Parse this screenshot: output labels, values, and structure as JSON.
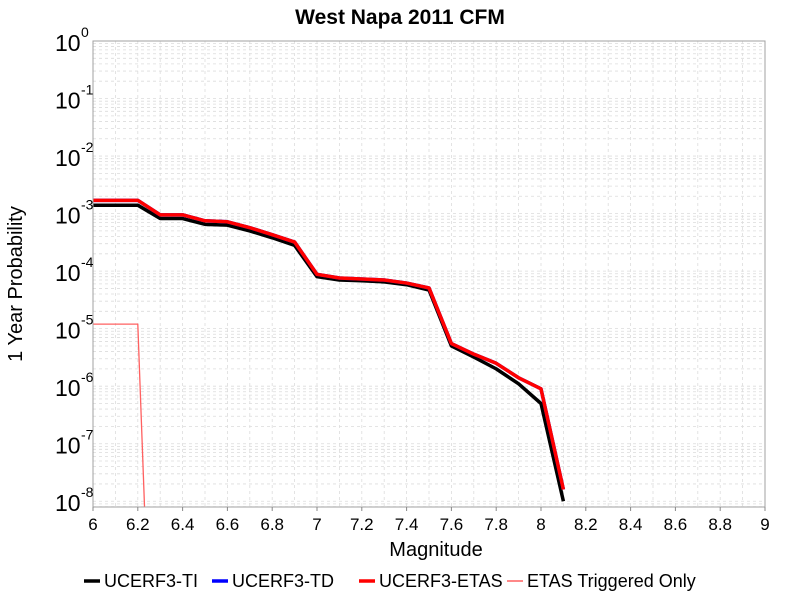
{
  "chart_data": {
    "type": "line",
    "title": "West Napa 2011 CFM",
    "xlabel": "Magnitude",
    "ylabel": "1 Year Probability",
    "xlim": [
      6,
      9
    ],
    "ylim_log10": [
      -8.1,
      0
    ],
    "y_scale": "log",
    "grid": true,
    "legend_position": "bottom",
    "x_ticks": [
      "6",
      "6.2",
      "6.4",
      "6.6",
      "6.8",
      "7",
      "7.2",
      "7.4",
      "7.6",
      "7.8",
      "8",
      "8.2",
      "8.4",
      "8.6",
      "8.8",
      "9"
    ],
    "y_ticks": [
      {
        "base": "10",
        "exp": "0",
        "value": 1
      },
      {
        "base": "10",
        "exp": "-1",
        "value": 0.1
      },
      {
        "base": "10",
        "exp": "-2",
        "value": 0.01
      },
      {
        "base": "10",
        "exp": "-3",
        "value": 0.001
      },
      {
        "base": "10",
        "exp": "-4",
        "value": 0.0001
      },
      {
        "base": "10",
        "exp": "-5",
        "value": 1e-05
      },
      {
        "base": "10",
        "exp": "-6",
        "value": 1e-06
      },
      {
        "base": "10",
        "exp": "-7",
        "value": 1e-07
      },
      {
        "base": "10",
        "exp": "-8",
        "value": 1e-08
      }
    ],
    "series": [
      {
        "name": "UCERF3-TI",
        "color": "#000000",
        "x": [
          6.0,
          6.2,
          6.3,
          6.4,
          6.5,
          6.6,
          6.7,
          6.8,
          6.9,
          7.0,
          7.1,
          7.2,
          7.3,
          7.4,
          7.5,
          7.6,
          7.7,
          7.8,
          7.9,
          8.0,
          8.1
        ],
        "y": [
          0.0014,
          0.0014,
          0.00082,
          0.00082,
          0.00065,
          0.00063,
          0.0005,
          0.00038,
          0.00028,
          8e-05,
          7e-05,
          6.8e-05,
          6.5e-05,
          5.8e-05,
          4.7e-05,
          5e-06,
          3.2e-06,
          2e-06,
          1.1e-06,
          5e-07,
          1e-08
        ]
      },
      {
        "name": "UCERF3-TD",
        "color": "#0000ff",
        "x": [
          6.0,
          6.2,
          6.3,
          6.4,
          6.5,
          6.6,
          6.7,
          6.8,
          6.9,
          7.0,
          7.1,
          7.2,
          7.3,
          7.4,
          7.5,
          7.6,
          7.7,
          7.8,
          7.9,
          8.0,
          8.1
        ],
        "y": [
          0.0017,
          0.0017,
          0.00095,
          0.00095,
          0.00075,
          0.00072,
          0.00057,
          0.00043,
          0.00032,
          8.8e-05,
          7.6e-05,
          7.3e-05,
          7e-05,
          6.2e-05,
          5.1e-05,
          5.5e-06,
          3.6e-06,
          2.5e-06,
          1.4e-06,
          9e-07,
          1.6e-08
        ]
      },
      {
        "name": "UCERF3-ETAS",
        "color": "#ff0000",
        "x": [
          6.0,
          6.2,
          6.3,
          6.4,
          6.5,
          6.6,
          6.7,
          6.8,
          6.9,
          7.0,
          7.1,
          7.2,
          7.3,
          7.4,
          7.5,
          7.6,
          7.7,
          7.8,
          7.9,
          8.0,
          8.1
        ],
        "y": [
          0.0017,
          0.0017,
          0.00095,
          0.00095,
          0.00075,
          0.00072,
          0.00057,
          0.00043,
          0.00032,
          8.8e-05,
          7.6e-05,
          7.3e-05,
          7e-05,
          6.2e-05,
          5.1e-05,
          5.5e-06,
          3.6e-06,
          2.5e-06,
          1.4e-06,
          9e-07,
          1.6e-08
        ]
      },
      {
        "name": "ETAS Triggered Only",
        "color": "#ff6060",
        "x": [
          6.0,
          6.2,
          6.23
        ],
        "y": [
          1.2e-05,
          1.2e-05,
          8e-09
        ]
      }
    ]
  }
}
